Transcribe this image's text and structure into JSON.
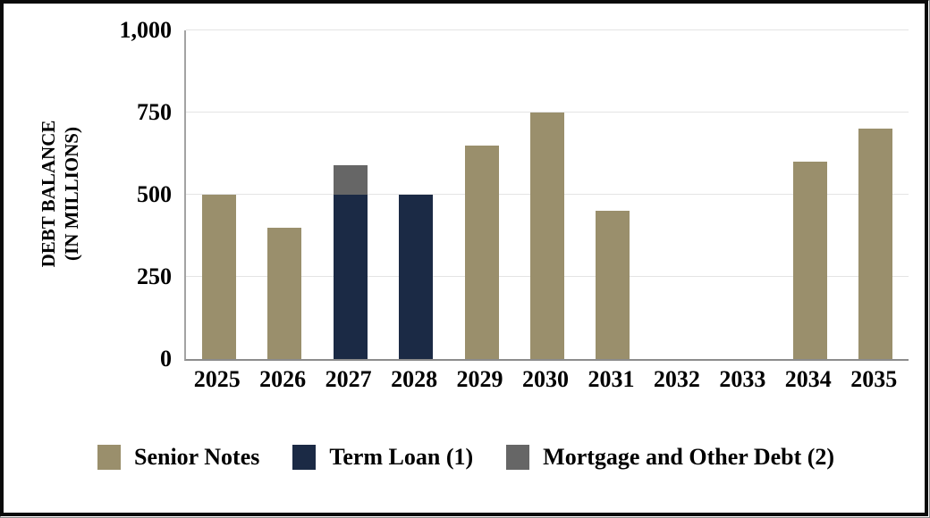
{
  "chart_data": {
    "type": "bar",
    "stacked": true,
    "title": "",
    "ylabel_line1": "DEBT BALANCE",
    "ylabel_line2": "(IN MILLIONS)",
    "xlabel": "",
    "ylim": [
      0,
      1000
    ],
    "grid": true,
    "legend_position": "bottom",
    "yticks": [
      {
        "value": 0,
        "label": "0"
      },
      {
        "value": 250,
        "label": "250"
      },
      {
        "value": 500,
        "label": "500"
      },
      {
        "value": 750,
        "label": "750"
      },
      {
        "value": 1000,
        "label": "1,000"
      }
    ],
    "categories": [
      "2025",
      "2026",
      "2027",
      "2028",
      "2029",
      "2030",
      "2031",
      "2032",
      "2033",
      "2034",
      "2035"
    ],
    "series": [
      {
        "name": "Senior Notes",
        "color": "#9A8F6C",
        "values": [
          500,
          400,
          0,
          0,
          650,
          750,
          450,
          0,
          0,
          600,
          700
        ]
      },
      {
        "name": "Term Loan (1)",
        "color": "#1B2A45",
        "values": [
          0,
          0,
          500,
          500,
          0,
          0,
          0,
          0,
          0,
          0,
          0
        ]
      },
      {
        "name": "Mortgage and Other Debt (2)",
        "color": "#666666",
        "values": [
          0,
          0,
          90,
          0,
          0,
          0,
          0,
          0,
          0,
          0,
          0
        ]
      }
    ]
  },
  "colors": {
    "frame_border": "#0A0A0A",
    "frame_outline": "#8A8A8A",
    "gridline": "#E4E4E4",
    "y_axis_line": "#A3A3A3",
    "x_axis_line": "#8C8C8C",
    "background": "#FFFFFF",
    "text": "#000000"
  }
}
